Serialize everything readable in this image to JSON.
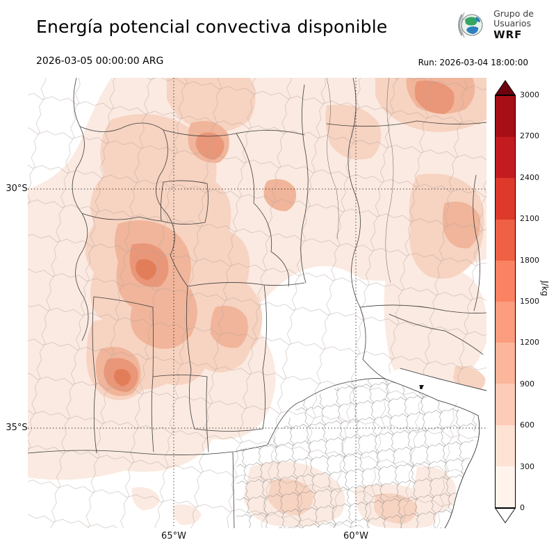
{
  "header": {
    "title": "Energía potencial convectiva disponible",
    "logo": {
      "line1": "Grupo de",
      "line2": "Usuarios",
      "line3": "WRF"
    }
  },
  "subheader": {
    "valid_time": "2026-03-05 00:00:00 ARG",
    "run_time": "Run: 2026-03-04 18:00:00"
  },
  "map": {
    "lat30": "30°S",
    "lat35": "35°S",
    "lon65": "65°W",
    "lon60": "60°W"
  },
  "colorbar": {
    "unit": "J/kg",
    "ticks_top_to_bottom": [
      "3000",
      "2700",
      "2400",
      "2100",
      "1800",
      "1500",
      "1200",
      "900",
      "600",
      "300",
      "0"
    ],
    "segment_colors_top_to_bottom": [
      "#a60f15",
      "#c21c20",
      "#dd3a2c",
      "#ef6044",
      "#fb8262",
      "#fc9d80",
      "#fcb69c",
      "#fdccb8",
      "#fee3d4",
      "#fff3ec"
    ],
    "over_arrow_color": "#6d010e",
    "under_arrow_color": "#ffffff"
  }
}
